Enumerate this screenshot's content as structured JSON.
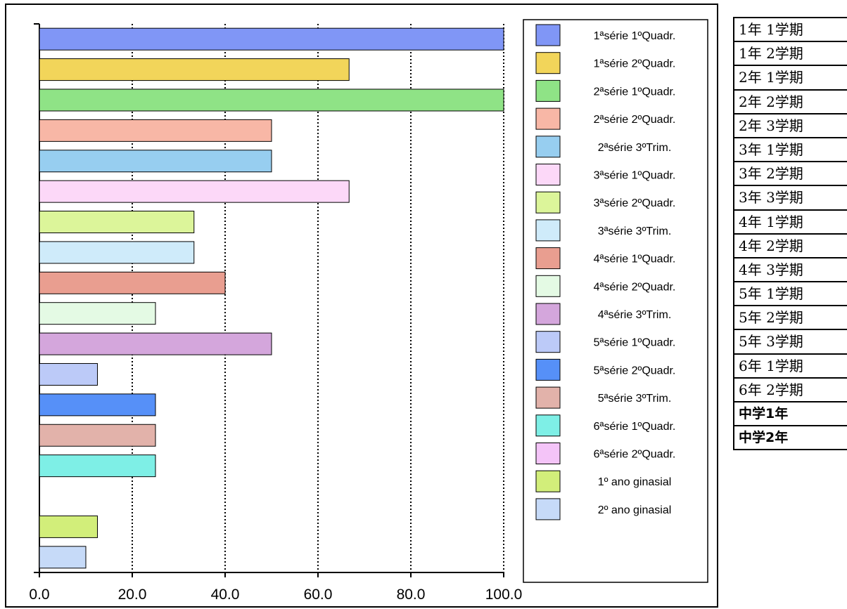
{
  "chart_data": {
    "type": "bar",
    "orientation": "horizontal",
    "categories": [
      "1ªsérie 1ºQuadr.",
      "1ªsérie 2ºQuadr.",
      "2ªsérie 1ºQuadr.",
      "2ªsérie 2ºQuadr.",
      "2ªsérie 3ºTrim.",
      "3ªsérie 1ºQuadr.",
      "3ªsérie 2ºQuadr.",
      "3ªsérie 3ºTrim.",
      "4ªsérie 1ºQuadr.",
      "4ªsérie 2ºQuadr.",
      "4ªsérie 3ºTrim.",
      "5ªsérie 1ºQuadr.",
      "5ªsérie 2ºQuadr.",
      "5ªsérie 3ºTrim.",
      "6ªsérie 1ºQuadr.",
      "6ªsérie 2ºQuadr.",
      "1º ano ginasial",
      "2º ano ginasial"
    ],
    "values": [
      100,
      66.7,
      100,
      50,
      50,
      66.7,
      33.3,
      33.3,
      40,
      25,
      50,
      12.5,
      25,
      25,
      25,
      0,
      12.5,
      10
    ],
    "colors": [
      "#8096f6",
      "#f2d55a",
      "#8fe386",
      "#f8b7a6",
      "#97cef0",
      "#fcd8f8",
      "#dcf59a",
      "#cfebfa",
      "#e99e90",
      "#e4fae4",
      "#d4a6dc",
      "#bccaf8",
      "#5690f8",
      "#e2b2aa",
      "#7eefe6",
      "#f4c4f8",
      "#d2ee7a",
      "#c6daf8"
    ],
    "xlim": [
      0,
      100
    ],
    "xticks": [
      "0.0",
      "20.0",
      "40.0",
      "60.0",
      "80.0",
      "100.0"
    ],
    "grid": "vertical dotted",
    "legend": "right"
  },
  "jp_labels": [
    "1年 1学期",
    "1年 2学期",
    "2年 1学期",
    "2年 2学期",
    "2年 3学期",
    "3年 1学期",
    "3年 2学期",
    "3年 3学期",
    "4年 1学期",
    "4年 2学期",
    "4年 3学期",
    "5年 1学期",
    "5年 2学期",
    "5年 3学期",
    "6年 1学期",
    "6年 2学期",
    "中学1年",
    "中学2年"
  ]
}
